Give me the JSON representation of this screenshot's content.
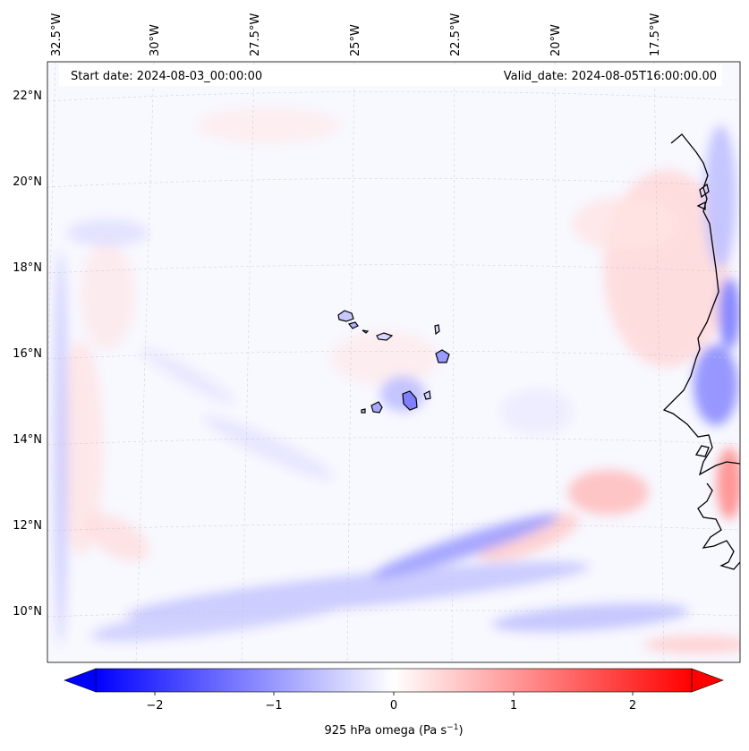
{
  "header": {
    "start_date": "Start date: 2024-08-03_00:00:00",
    "valid_date": "Valid_date: 2024-08-05T16:00:00.00"
  },
  "map": {
    "variable": "925 hPa omega",
    "lon_ticks": [
      "32.5°W",
      "30°W",
      "27.5°W",
      "25°W",
      "22.5°W",
      "20°W",
      "17.5°W"
    ],
    "lat_ticks": [
      "22°N",
      "20°N",
      "18°N",
      "16°N",
      "14°N",
      "12°N",
      "10°N"
    ],
    "gridlines": true,
    "colormap": "bwr",
    "colors": {
      "negative": "#0000ff",
      "zero": "#ffffff",
      "positive": "#ff0000"
    }
  },
  "colorbar": {
    "ticks": [
      "−2",
      "−1",
      "0",
      "1",
      "2"
    ],
    "range": [
      -2.7,
      2.7
    ],
    "label_prefix": "925 hPa omega (Pa s",
    "label_exp": "−1",
    "label_suffix": ")"
  }
}
